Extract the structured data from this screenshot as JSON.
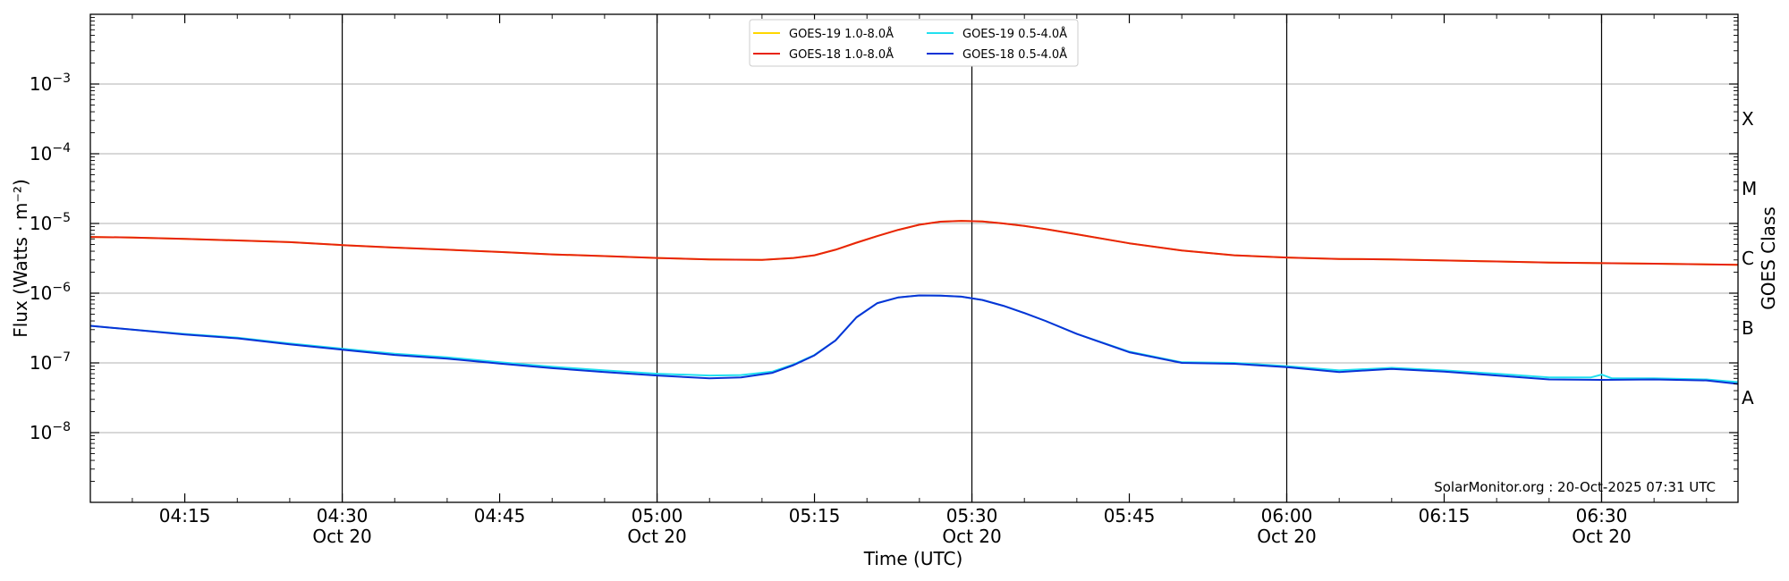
{
  "chart_data": {
    "type": "line",
    "xlabel": "Time (UTC)",
    "ylabel": "Flux (Watts · m⁻²)",
    "y_scale": "log",
    "ylim": [
      1e-09,
      0.01
    ],
    "xlim": [
      "2025-10-20 04:06",
      "2025-10-20 06:43"
    ],
    "y_ticks": [
      {
        "exp": "−8",
        "value": 1e-08
      },
      {
        "exp": "−7",
        "value": 1e-07
      },
      {
        "exp": "−6",
        "value": 1e-06
      },
      {
        "exp": "−5",
        "value": 1e-05
      },
      {
        "exp": "−4",
        "value": 0.0001
      },
      {
        "exp": "−3",
        "value": 0.001
      }
    ],
    "x_ticks": [
      {
        "time": "04:15",
        "date": ""
      },
      {
        "time": "04:30",
        "date": "Oct 20"
      },
      {
        "time": "04:45",
        "date": ""
      },
      {
        "time": "05:00",
        "date": "Oct 20"
      },
      {
        "time": "05:15",
        "date": ""
      },
      {
        "time": "05:30",
        "date": "Oct 20"
      },
      {
        "time": "05:45",
        "date": ""
      },
      {
        "time": "06:00",
        "date": "Oct 20"
      },
      {
        "time": "06:15",
        "date": ""
      },
      {
        "time": "06:30",
        "date": "Oct 20"
      }
    ],
    "right_axis": {
      "label": "GOES Class",
      "classes": [
        {
          "label": "A",
          "value": 1e-08
        },
        {
          "label": "B",
          "value": 1e-07
        },
        {
          "label": "C",
          "value": 1e-06
        },
        {
          "label": "M",
          "value": 1e-05
        },
        {
          "label": "X",
          "value": 0.0001
        }
      ]
    },
    "grid": "horizontal at decades",
    "vertical_lines_at": [
      "04:30",
      "05:00",
      "05:30",
      "06:00",
      "06:30"
    ],
    "legend": {
      "placement": "top-center",
      "columns": 2
    },
    "annotation": "SolarMonitor.org : 20-Oct-2025 07:31 UTC",
    "series": [
      {
        "name": "GOES-19 1.0-8.0Å",
        "color": "#ffd700",
        "x": [
          "04:06",
          "04:10",
          "04:15",
          "04:20",
          "04:25",
          "04:30",
          "04:35",
          "04:40",
          "04:45",
          "04:50",
          "04:55",
          "05:00",
          "05:05",
          "05:10",
          "05:13",
          "05:15",
          "05:17",
          "05:19",
          "05:21",
          "05:23",
          "05:25",
          "05:27",
          "05:29",
          "05:31",
          "05:33",
          "05:35",
          "05:37",
          "05:40",
          "05:45",
          "05:50",
          "05:55",
          "06:00",
          "06:05",
          "06:10",
          "06:15",
          "06:20",
          "06:25",
          "06:30",
          "06:35",
          "06:43"
        ],
        "y": [
          6.4e-06,
          6.3e-06,
          6e-06,
          5.7e-06,
          5.4e-06,
          4.9e-06,
          4.5e-06,
          4.2e-06,
          3.9e-06,
          3.6e-06,
          3.4e-06,
          3.2e-06,
          3.05e-06,
          3e-06,
          3.2e-06,
          3.5e-06,
          4.2e-06,
          5.3e-06,
          6.6e-06,
          8.1e-06,
          9.6e-06,
          1.06e-05,
          1.09e-05,
          1.07e-05,
          1e-05,
          9.2e-06,
          8.3e-06,
          7e-06,
          5.2e-06,
          4.1e-06,
          3.5e-06,
          3.25e-06,
          3.1e-06,
          3.05e-06,
          2.95e-06,
          2.85e-06,
          2.75e-06,
          2.7e-06,
          2.65e-06,
          2.55e-06
        ]
      },
      {
        "name": "GOES-18 1.0-8.0Å",
        "color": "#e8230d",
        "x": [
          "04:06",
          "04:10",
          "04:15",
          "04:20",
          "04:25",
          "04:30",
          "04:35",
          "04:40",
          "04:45",
          "04:50",
          "04:55",
          "05:00",
          "05:05",
          "05:10",
          "05:13",
          "05:15",
          "05:17",
          "05:19",
          "05:21",
          "05:23",
          "05:25",
          "05:27",
          "05:29",
          "05:31",
          "05:33",
          "05:35",
          "05:37",
          "05:40",
          "05:45",
          "05:50",
          "05:55",
          "06:00",
          "06:05",
          "06:10",
          "06:15",
          "06:20",
          "06:25",
          "06:30",
          "06:35",
          "06:43"
        ],
        "y": [
          6.4e-06,
          6.3e-06,
          6e-06,
          5.7e-06,
          5.4e-06,
          4.9e-06,
          4.5e-06,
          4.2e-06,
          3.9e-06,
          3.6e-06,
          3.4e-06,
          3.2e-06,
          3.05e-06,
          3e-06,
          3.2e-06,
          3.5e-06,
          4.2e-06,
          5.3e-06,
          6.6e-06,
          8.1e-06,
          9.6e-06,
          1.06e-05,
          1.09e-05,
          1.07e-05,
          1e-05,
          9.2e-06,
          8.3e-06,
          7e-06,
          5.2e-06,
          4.1e-06,
          3.5e-06,
          3.25e-06,
          3.1e-06,
          3.05e-06,
          2.95e-06,
          2.85e-06,
          2.75e-06,
          2.7e-06,
          2.65e-06,
          2.55e-06
        ]
      },
      {
        "name": "GOES-19 0.5-4.0Å",
        "color": "#22e0f0",
        "x": [
          "04:06",
          "04:10",
          "04:15",
          "04:20",
          "04:25",
          "04:30",
          "04:35",
          "04:40",
          "04:45",
          "04:50",
          "04:55",
          "05:00",
          "05:05",
          "05:08",
          "05:11",
          "05:13",
          "05:15",
          "05:17",
          "05:19",
          "05:21",
          "05:23",
          "05:25",
          "05:27",
          "05:29",
          "05:31",
          "05:33",
          "05:35",
          "05:37",
          "05:40",
          "05:45",
          "05:50",
          "05:55",
          "06:00",
          "06:05",
          "06:10",
          "06:15",
          "06:20",
          "06:25",
          "06:29",
          "06:30",
          "06:31",
          "06:35",
          "06:40",
          "06:43"
        ],
        "y": [
          3.4e-07,
          3e-07,
          2.6e-07,
          2.3e-07,
          1.9e-07,
          1.6e-07,
          1.35e-07,
          1.2e-07,
          1.02e-07,
          8.8e-08,
          7.8e-08,
          7e-08,
          6.6e-08,
          6.7e-08,
          7.5e-08,
          9.5e-08,
          1.3e-07,
          2.1e-07,
          4.5e-07,
          7.2e-07,
          8.7e-07,
          9.3e-07,
          9.2e-07,
          8.9e-07,
          8e-07,
          6.6e-07,
          5.2e-07,
          4e-07,
          2.6e-07,
          1.45e-07,
          1.02e-07,
          1e-07,
          9e-08,
          7.8e-08,
          8.5e-08,
          7.8e-08,
          7e-08,
          6.2e-08,
          6.2e-08,
          6.8e-08,
          6e-08,
          6e-08,
          5.8e-08,
          5.3e-08
        ]
      },
      {
        "name": "GOES-18 0.5-4.0Å",
        "color": "#0a32d6",
        "x": [
          "04:06",
          "04:10",
          "04:15",
          "04:20",
          "04:25",
          "04:30",
          "04:35",
          "04:40",
          "04:45",
          "04:50",
          "04:55",
          "05:00",
          "05:05",
          "05:08",
          "05:11",
          "05:13",
          "05:15",
          "05:17",
          "05:19",
          "05:21",
          "05:23",
          "05:25",
          "05:27",
          "05:29",
          "05:31",
          "05:33",
          "05:35",
          "05:37",
          "05:40",
          "05:45",
          "05:50",
          "05:55",
          "06:00",
          "06:05",
          "06:10",
          "06:15",
          "06:20",
          "06:25",
          "06:30",
          "06:35",
          "06:40",
          "06:43"
        ],
        "y": [
          3.4e-07,
          3e-07,
          2.55e-07,
          2.25e-07,
          1.85e-07,
          1.55e-07,
          1.3e-07,
          1.15e-07,
          9.8e-08,
          8.4e-08,
          7.4e-08,
          6.6e-08,
          6e-08,
          6.2e-08,
          7.2e-08,
          9.3e-08,
          1.28e-07,
          2.1e-07,
          4.5e-07,
          7.2e-07,
          8.7e-07,
          9.3e-07,
          9.2e-07,
          8.9e-07,
          8e-07,
          6.6e-07,
          5.2e-07,
          4e-07,
          2.6e-07,
          1.42e-07,
          1e-07,
          9.7e-08,
          8.7e-08,
          7.4e-08,
          8.2e-08,
          7.5e-08,
          6.6e-08,
          5.8e-08,
          5.7e-08,
          5.8e-08,
          5.6e-08,
          5e-08
        ]
      }
    ]
  }
}
